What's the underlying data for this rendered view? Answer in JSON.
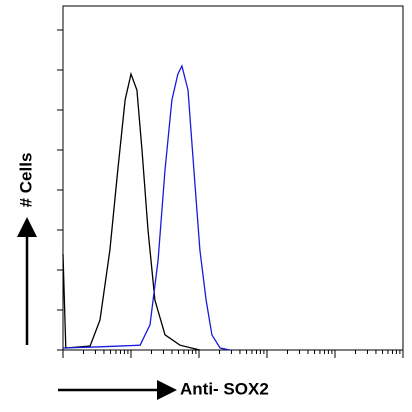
{
  "chart_data": {
    "type": "line",
    "xlabel": "Anti- SOX2",
    "ylabel": "# Cells",
    "xlog": true,
    "xlim": [
      1,
      100000
    ],
    "ylim": [
      0,
      8.6
    ],
    "xticks": [
      1,
      2,
      3,
      4,
      5,
      6,
      7,
      8,
      9,
      10,
      20,
      30,
      40,
      50,
      60,
      70,
      80,
      90,
      100,
      200,
      300,
      400,
      500,
      600,
      700,
      800,
      900,
      1000,
      2000,
      3000,
      4000,
      5000,
      6000,
      7000,
      8000,
      9000,
      10000,
      20000,
      30000,
      40000,
      50000,
      60000,
      70000,
      80000,
      90000,
      100000
    ],
    "yticks": [
      0,
      1,
      2,
      3,
      4,
      5,
      6,
      7,
      8
    ],
    "series": [
      {
        "color": "#000000",
        "x": [
          1,
          1.1,
          2.5,
          3.5,
          4.9,
          6.4,
          8.2,
          10,
          12.2,
          14.5,
          17.8,
          22.5,
          31.6,
          52.5,
          103
        ],
        "values": [
          2.4,
          0.05,
          0.1,
          0.75,
          2.5,
          4.5,
          6.25,
          6.9,
          6.5,
          5,
          3,
          1.25,
          0.38,
          0.12,
          0
        ]
      },
      {
        "color": "#1a1adc",
        "x": [
          1,
          3.5,
          13.6,
          19,
          25,
          31.6,
          40,
          49,
          56,
          69,
          84,
          103,
          127,
          155,
          204,
          286
        ],
        "values": [
          0.05,
          0.08,
          0.12,
          0.63,
          2.25,
          4.5,
          6.25,
          6.9,
          7.1,
          6.5,
          4.5,
          2.5,
          1.25,
          0.38,
          0.05,
          0
        ]
      }
    ]
  }
}
